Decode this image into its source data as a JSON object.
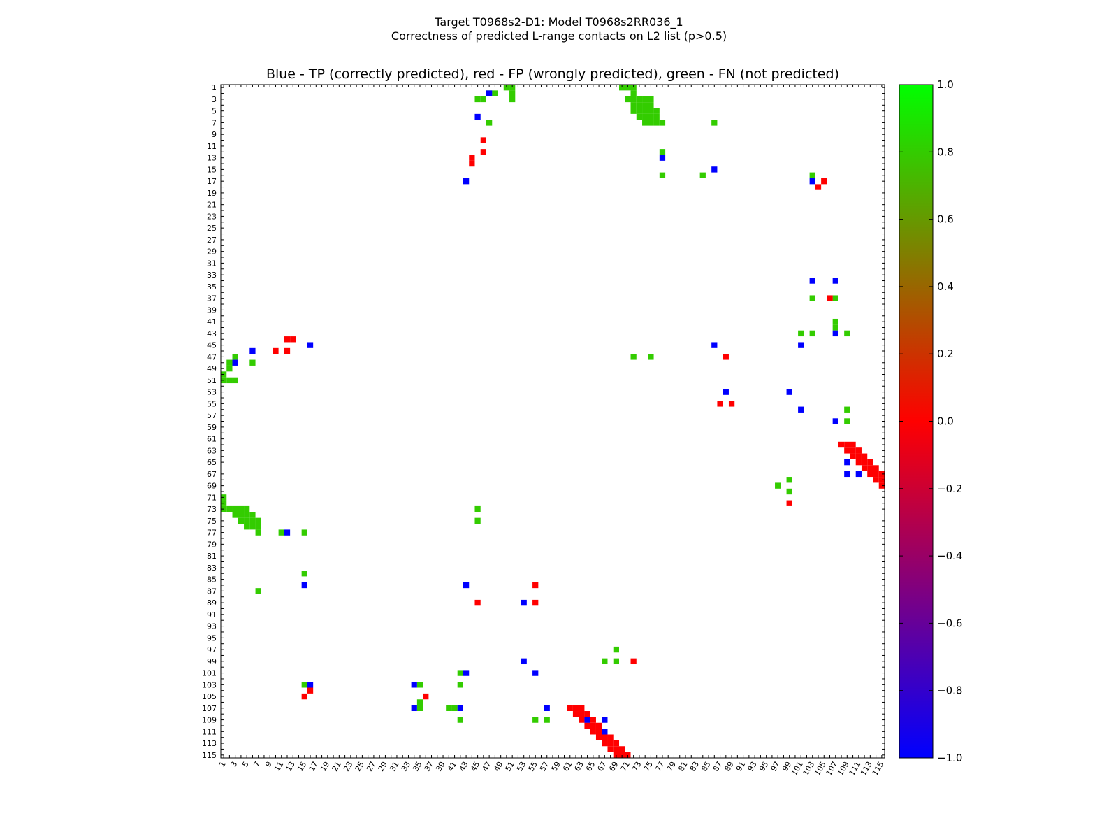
{
  "title_line1": "Target T0968s2-D1: Model T0968s2RR036_1",
  "title_line2": "Correctness of predicted L-range contacts on L2 list (p>0.5)",
  "chart_data": {
    "type": "heatmap",
    "title": "Blue - TP (correctly predicted), red - FP (wrongly predicted), green - FN (not predicted)",
    "xlabel": "",
    "ylabel": "",
    "n_residues": 115,
    "axis_ticks": [
      1,
      3,
      5,
      7,
      9,
      11,
      13,
      15,
      17,
      19,
      21,
      23,
      25,
      27,
      29,
      31,
      33,
      35,
      37,
      39,
      41,
      43,
      45,
      47,
      49,
      51,
      53,
      55,
      57,
      59,
      61,
      63,
      65,
      67,
      69,
      71,
      73,
      75,
      77,
      79,
      81,
      83,
      85,
      87,
      89,
      91,
      93,
      95,
      97,
      99,
      101,
      103,
      105,
      107,
      109,
      111,
      113,
      115
    ],
    "colorbar": {
      "min": -1.0,
      "max": 1.0,
      "ticks": [
        "1.0",
        "0.8",
        "0.6",
        "0.4",
        "0.2",
        "0.0",
        "−0.2",
        "−0.4",
        "−0.6",
        "−0.8",
        "−1.0"
      ],
      "colors": [
        "#0000ff",
        "#ff0000",
        "#00ff00"
      ]
    },
    "legend": {
      "tp": "Blue",
      "fp": "Red",
      "fn": "Green"
    },
    "status_colors": {
      "tp": "#0000ff",
      "fp": "#ff0000",
      "fn": "#33cc00"
    },
    "cells": {
      "tp": [
        [
          2,
          47
        ],
        [
          6,
          45
        ],
        [
          13,
          77
        ],
        [
          17,
          43
        ],
        [
          15,
          86
        ],
        [
          17,
          103
        ],
        [
          34,
          103
        ],
        [
          34,
          107
        ],
        [
          43,
          107
        ],
        [
          45,
          86
        ],
        [
          45,
          101
        ],
        [
          46,
          6
        ],
        [
          48,
          3
        ],
        [
          45,
          16
        ],
        [
          53,
          88
        ],
        [
          53,
          99
        ],
        [
          56,
          101
        ],
        [
          58,
          107
        ],
        [
          65,
          109
        ],
        [
          67,
          109
        ],
        [
          67,
          111
        ],
        [
          77,
          12
        ],
        [
          86,
          43
        ],
        [
          86,
          15
        ],
        [
          89,
          53
        ],
        [
          99,
          53
        ],
        [
          101,
          43
        ],
        [
          101,
          55
        ],
        [
          103,
          34
        ],
        [
          103,
          16
        ],
        [
          107,
          34
        ],
        [
          107,
          42
        ],
        [
          107,
          57
        ],
        [
          109,
          64
        ],
        [
          109,
          67
        ],
        [
          111,
          67
        ]
      ],
      "fp": [
        [
          10,
          46
        ],
        [
          12,
          46
        ],
        [
          13,
          44
        ],
        [
          14,
          44
        ],
        [
          17,
          105
        ],
        [
          18,
          104
        ],
        [
          37,
          106
        ],
        [
          44,
          12
        ],
        [
          44,
          13
        ],
        [
          46,
          10
        ],
        [
          46,
          12
        ],
        [
          47,
          88
        ],
        [
          55,
          87
        ],
        [
          55,
          89
        ],
        [
          72,
          99
        ],
        [
          86,
          55
        ],
        [
          89,
          45
        ],
        [
          89,
          55
        ],
        [
          99,
          72
        ],
        [
          104,
          16
        ],
        [
          105,
          36
        ],
        [
          105,
          15
        ]
      ],
      "fn": [
        [
          1,
          50
        ],
        [
          1,
          51
        ],
        [
          1,
          70
        ],
        [
          1,
          71
        ],
        [
          1,
          72
        ],
        [
          2,
          47
        ],
        [
          2,
          48
        ],
        [
          2,
          51
        ],
        [
          2,
          72
        ],
        [
          3,
          45
        ],
        [
          3,
          46
        ],
        [
          3,
          51
        ],
        [
          3,
          71
        ],
        [
          3,
          72
        ],
        [
          3,
          73
        ],
        [
          3,
          74
        ],
        [
          3,
          75
        ],
        [
          4,
          72
        ],
        [
          4,
          73
        ],
        [
          4,
          74
        ],
        [
          4,
          75
        ],
        [
          5,
          72
        ],
        [
          5,
          73
        ],
        [
          5,
          74
        ],
        [
          5,
          75
        ],
        [
          5,
          76
        ],
        [
          6,
          73
        ],
        [
          6,
          74
        ],
        [
          6,
          75
        ],
        [
          6,
          76
        ],
        [
          7,
          47
        ],
        [
          7,
          74
        ],
        [
          7,
          75
        ],
        [
          7,
          76
        ],
        [
          7,
          77
        ],
        [
          7,
          86
        ],
        [
          12,
          77
        ],
        [
          16,
          77
        ],
        [
          16,
          84
        ],
        [
          16,
          103
        ],
        [
          37,
          103
        ],
        [
          37,
          106
        ],
        [
          37,
          107
        ],
        [
          41,
          107
        ],
        [
          42,
          107
        ],
        [
          43,
          101
        ],
        [
          43,
          103
        ],
        [
          43,
          109
        ],
        [
          47,
          3
        ],
        [
          47,
          72
        ],
        [
          47,
          75
        ],
        [
          48,
          2
        ],
        [
          48,
          6
        ],
        [
          49,
          2
        ],
        [
          50,
          1
        ],
        [
          51,
          1
        ],
        [
          51,
          2
        ],
        [
          51,
          3
        ],
        [
          56,
          109
        ],
        [
          58,
          109
        ],
        [
          68,
          99
        ],
        [
          69,
          97
        ],
        [
          70,
          99
        ],
        [
          71,
          1
        ],
        [
          72,
          1
        ],
        [
          73,
          1
        ],
        [
          73,
          2
        ],
        [
          73,
          3
        ],
        [
          73,
          4
        ],
        [
          73,
          5
        ],
        [
          73,
          45
        ],
        [
          74,
          3
        ],
        [
          74,
          4
        ],
        [
          74,
          5
        ],
        [
          74,
          6
        ],
        [
          75,
          4
        ],
        [
          75,
          5
        ],
        [
          75,
          6
        ],
        [
          75,
          7
        ],
        [
          75,
          45
        ],
        [
          76,
          5
        ],
        [
          76,
          6
        ],
        [
          76,
          7
        ],
        [
          77,
          7
        ],
        [
          77,
          11
        ],
        [
          77,
          15
        ],
        [
          84,
          15
        ],
        [
          87,
          7
        ],
        [
          97,
          69
        ],
        [
          99,
          67
        ],
        [
          99,
          69
        ],
        [
          101,
          42
        ],
        [
          103,
          15
        ],
        [
          103,
          35
        ],
        [
          103,
          42
        ],
        [
          106,
          35
        ],
        [
          107,
          35
        ],
        [
          107,
          40
        ],
        [
          107,
          41
        ],
        [
          109,
          42
        ],
        [
          109,
          55
        ],
        [
          109,
          57
        ]
      ],
      "fp_bands": [
        {
          "rows": [
            62,
            71
          ],
          "offset": 46,
          "width": 3
        },
        {
          "rows": [
            107,
            115
          ],
          "offset": -46,
          "width": 3
        }
      ]
    }
  }
}
